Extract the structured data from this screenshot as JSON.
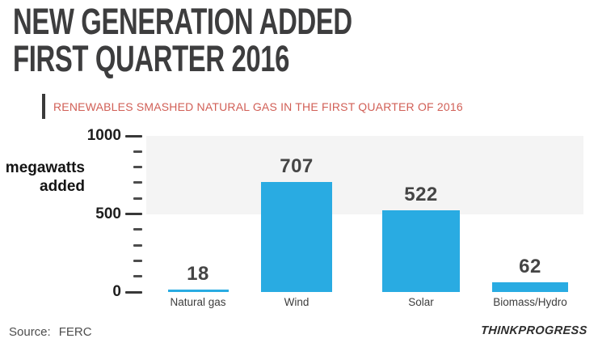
{
  "title": {
    "line1": "NEW GENERATION ADDED",
    "line2": "FIRST QUARTER 2016"
  },
  "subtitle": "RENEWABLES SMASHED NATURAL GAS IN THE FIRST QUARTER OF 2016",
  "y_axis_label": {
    "line1": "megawatts",
    "line2": "added"
  },
  "source": {
    "label": "Source:",
    "value": "FERC"
  },
  "branding": "THINKPROGRESS",
  "colors": {
    "bar": "#29abe2",
    "band": "#f4f4f4",
    "subtitle_red": "#d15f56",
    "accent_bar": "#3a3a3a",
    "title_gray": "#3d3d3e"
  },
  "chart_data": {
    "type": "bar",
    "categories": [
      "Natural gas",
      "Wind",
      "Solar",
      "Biomass/Hydro"
    ],
    "values": [
      18,
      707,
      522,
      62
    ],
    "title": "NEW GENERATION ADDED FIRST QUARTER 2016",
    "subtitle": "RENEWABLES SMASHED NATURAL GAS IN THE FIRST QUARTER OF 2016",
    "xlabel": "",
    "ylabel": "megawatts added",
    "ylim": [
      0,
      1000
    ],
    "yticks": [
      0,
      500,
      1000
    ],
    "ytick_labels": [
      "0",
      "500",
      "1000"
    ],
    "minor_tick_step": 100,
    "shaded_band": {
      "from": 500,
      "to": 1000
    },
    "grid": "off",
    "legend": "none",
    "value_labels": true,
    "source": "FERC"
  }
}
